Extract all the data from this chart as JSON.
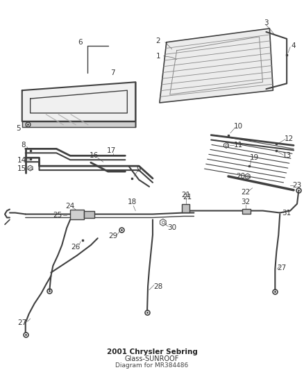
{
  "title": "2001 Chrysler Sebring",
  "subtitle": "Glass-SUNROOF",
  "diagram_ref": "Diagram for MR384486",
  "bg_color": "#ffffff",
  "line_color": "#404040",
  "label_color": "#333333"
}
